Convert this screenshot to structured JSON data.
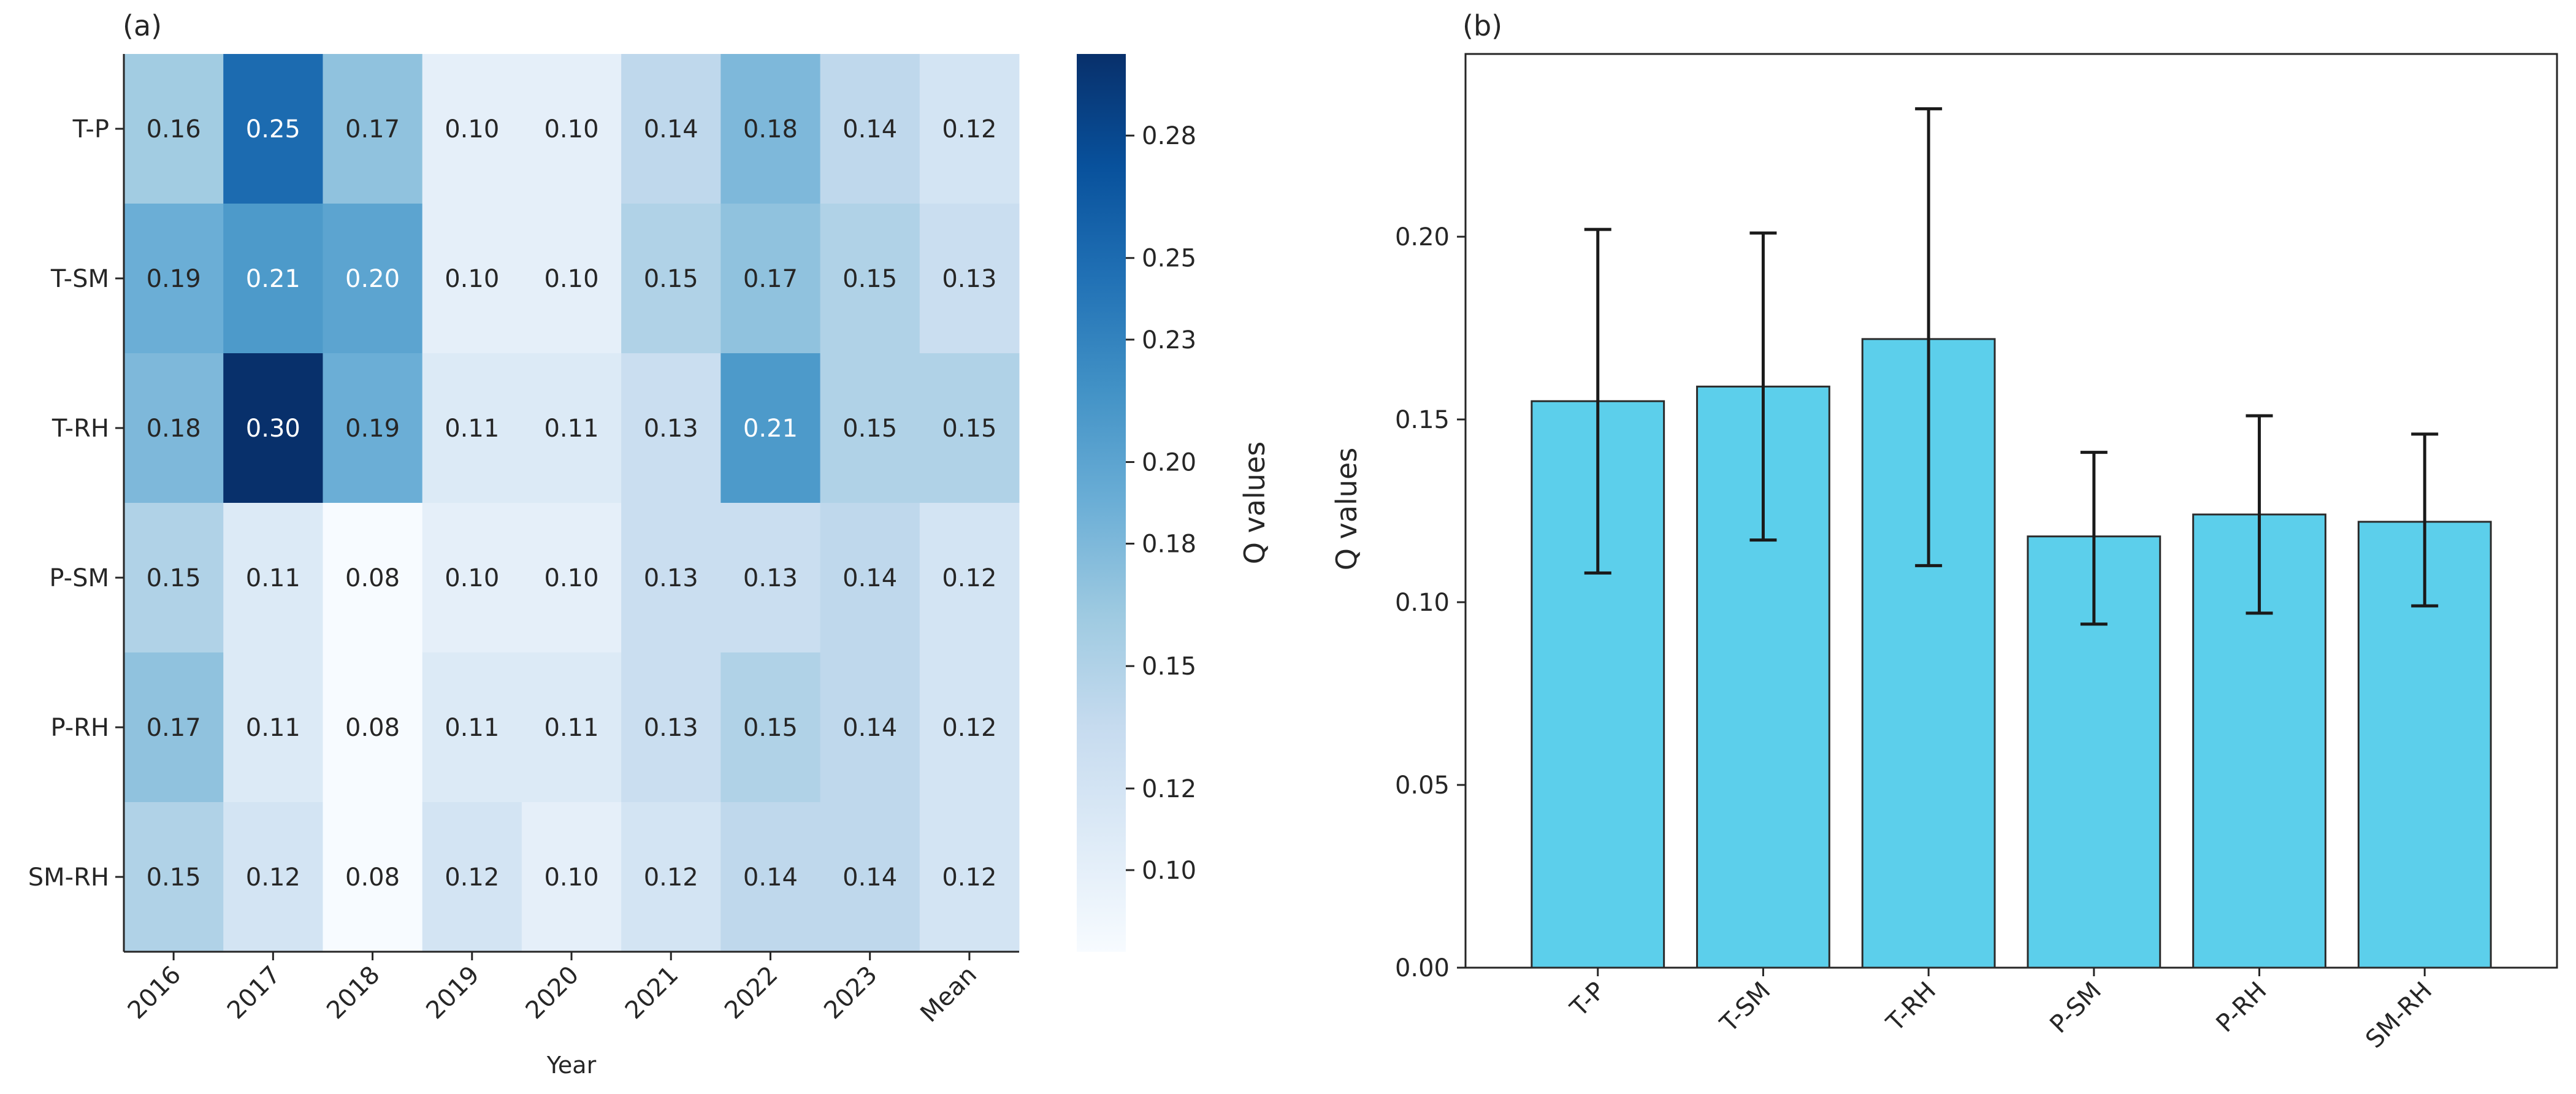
{
  "chart_data": [
    {
      "type": "heatmap",
      "panel_label": "(a)",
      "rows": [
        "T-P",
        "T-SM",
        "T-RH",
        "P-SM",
        "P-RH",
        "SM-RH"
      ],
      "columns": [
        "2016",
        "2017",
        "2018",
        "2019",
        "2020",
        "2021",
        "2022",
        "2023",
        "Mean"
      ],
      "values": [
        [
          0.16,
          0.25,
          0.17,
          0.1,
          0.1,
          0.14,
          0.18,
          0.14,
          0.12
        ],
        [
          0.19,
          0.21,
          0.2,
          0.1,
          0.1,
          0.15,
          0.17,
          0.15,
          0.13
        ],
        [
          0.18,
          0.3,
          0.19,
          0.11,
          0.11,
          0.13,
          0.21,
          0.15,
          0.15
        ],
        [
          0.15,
          0.11,
          0.08,
          0.1,
          0.1,
          0.13,
          0.13,
          0.14,
          0.12
        ],
        [
          0.17,
          0.11,
          0.08,
          0.11,
          0.11,
          0.13,
          0.15,
          0.14,
          0.12
        ],
        [
          0.15,
          0.12,
          0.08,
          0.12,
          0.1,
          0.12,
          0.14,
          0.14,
          0.12
        ]
      ],
      "value_labels": [
        [
          "0.16",
          "0.25",
          "0.17",
          "0.10",
          "0.10",
          "0.14",
          "0.18",
          "0.14",
          "0.12"
        ],
        [
          "0.19",
          "0.21",
          "0.20",
          "0.10",
          "0.10",
          "0.15",
          "0.17",
          "0.15",
          "0.13"
        ],
        [
          "0.18",
          "0.30",
          "0.19",
          "0.11",
          "0.11",
          "0.13",
          "0.21",
          "0.15",
          "0.15"
        ],
        [
          "0.15",
          "0.11",
          "0.08",
          "0.10",
          "0.10",
          "0.13",
          "0.13",
          "0.14",
          "0.12"
        ],
        [
          "0.17",
          "0.11",
          "0.08",
          "0.11",
          "0.11",
          "0.13",
          "0.15",
          "0.14",
          "0.12"
        ],
        [
          "0.15",
          "0.12",
          "0.08",
          "0.12",
          "0.10",
          "0.12",
          "0.14",
          "0.14",
          "0.12"
        ]
      ],
      "xlabel": "Year",
      "colorbar": {
        "label": "Q values",
        "colormap": "Blues",
        "range": [
          0.08,
          0.3
        ],
        "ticks": [
          0.1,
          0.12,
          0.15,
          0.18,
          0.2,
          0.23,
          0.25,
          0.28
        ],
        "tick_labels": [
          "0.10",
          "0.12",
          "0.15",
          "0.18",
          "0.20",
          "0.23",
          "0.25",
          "0.28"
        ]
      }
    },
    {
      "type": "bar",
      "panel_label": "(b)",
      "categories": [
        "T-P",
        "T-SM",
        "T-RH",
        "P-SM",
        "P-RH",
        "SM-RH"
      ],
      "values": [
        0.155,
        0.159,
        0.172,
        0.118,
        0.124,
        0.122
      ],
      "error_low": [
        0.108,
        0.117,
        0.11,
        0.094,
        0.097,
        0.099
      ],
      "error_high": [
        0.202,
        0.201,
        0.235,
        0.141,
        0.151,
        0.146
      ],
      "ylabel": "Q values",
      "ylim": [
        0.0,
        0.25
      ],
      "yticks": [
        0.0,
        0.05,
        0.1,
        0.15,
        0.2
      ],
      "ytick_labels": [
        "0.00",
        "0.05",
        "0.10",
        "0.15",
        "0.20"
      ],
      "bar_color": "#5ccfeb",
      "edge_color": "#2b2b2b"
    }
  ]
}
